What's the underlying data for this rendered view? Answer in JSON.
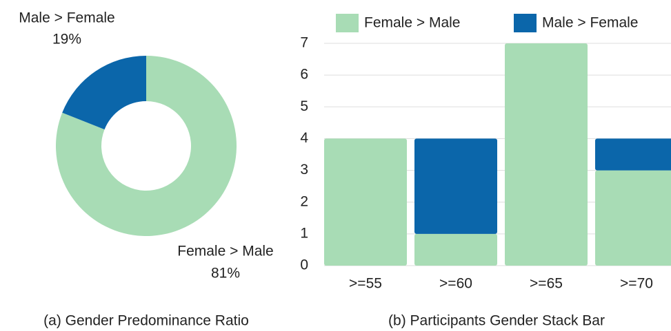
{
  "chart_data": [
    {
      "type": "pie",
      "title": "(a) Gender Predominance Ratio",
      "categories": [
        "Female > Male",
        "Male > Female"
      ],
      "values": [
        81,
        19
      ],
      "value_labels": [
        "81%",
        "19%"
      ],
      "colors": [
        "#a8dcb5",
        "#0b66aa"
      ],
      "donut": true
    },
    {
      "type": "bar",
      "stacked": true,
      "title": "(b) Participants Gender Stack Bar",
      "categories": [
        ">=55",
        ">=60",
        ">=65",
        ">=70"
      ],
      "series": [
        {
          "name": "Female > Male",
          "color": "#a8dcb5",
          "values": [
            4,
            1,
            7,
            3
          ]
        },
        {
          "name": "Male > Female",
          "color": "#0b66aa",
          "values": [
            0,
            3,
            0,
            1
          ]
        }
      ],
      "ylim": [
        0,
        7
      ],
      "yticks": [
        0,
        1,
        2,
        3,
        4,
        5,
        6,
        7
      ],
      "grid": true,
      "legend": "top"
    }
  ]
}
